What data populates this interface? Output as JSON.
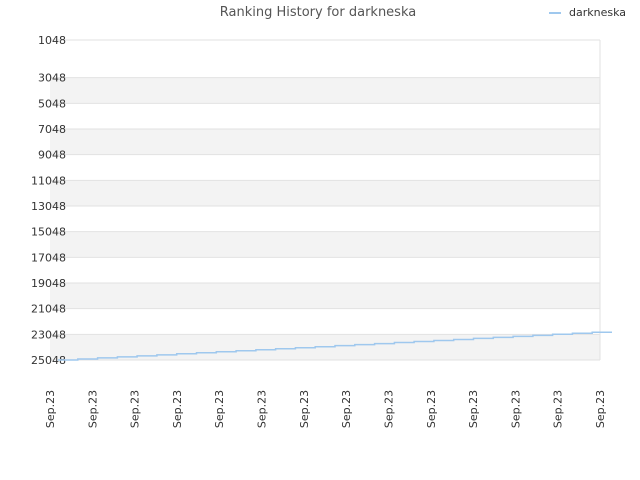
{
  "chart_data": {
    "type": "line",
    "title": "Ranking History for darkneska",
    "xlabel": "",
    "ylabel": "",
    "y_reversed": true,
    "ylim": [
      1048,
      25048
    ],
    "y_ticks": [
      1048,
      3048,
      5048,
      7048,
      9048,
      11048,
      13048,
      15048,
      17048,
      19048,
      21048,
      23048,
      25048
    ],
    "x_tick_labels": [
      "Sep.23",
      "Sep.23",
      "Sep.23",
      "Sep.23",
      "Sep.23",
      "Sep.23",
      "Sep.23",
      "Sep.23",
      "Sep.23",
      "Sep.23",
      "Sep.23",
      "Sep.23",
      "Sep.23",
      "Sep.23"
    ],
    "legend": {
      "position": "top-right",
      "entries": [
        "darkneska"
      ]
    },
    "grid": true,
    "band_colors": [
      "#f3f3f3",
      "#ffffff"
    ],
    "series": [
      {
        "name": "darkneska",
        "color": "#9fc8ee",
        "values": [
          25048,
          24968,
          24888,
          24808,
          24728,
          24648,
          24568,
          24488,
          24408,
          24328,
          24248,
          24168,
          24088,
          24008,
          23928,
          23848,
          23768,
          23688,
          23608,
          23528,
          23448,
          23368,
          23288,
          23208,
          23128,
          23048,
          22968,
          22888
        ]
      }
    ]
  }
}
